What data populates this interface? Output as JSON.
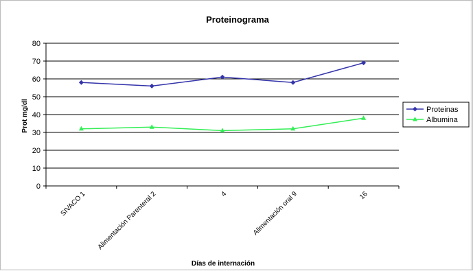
{
  "chart_data": {
    "type": "line",
    "title": "Proteinograma",
    "xlabel": "Días de internación",
    "ylabel": "Prot mg/dl",
    "categories": [
      "SIVACO  1",
      "Alimentación Parenteral  2",
      "4",
      "Alimentación oral  9",
      "16"
    ],
    "ylim": [
      0,
      80
    ],
    "yticks": [
      0,
      10,
      20,
      30,
      40,
      50,
      60,
      70,
      80
    ],
    "grid": true,
    "legend_position": "right",
    "series": [
      {
        "name": "Proteinas",
        "values": [
          58,
          56,
          61,
          58,
          69
        ],
        "color": "#3333aa",
        "marker": "diamond"
      },
      {
        "name": "Albumina",
        "values": [
          32,
          33,
          31,
          32,
          38
        ],
        "color": "#33ee55",
        "marker": "triangle"
      }
    ]
  }
}
